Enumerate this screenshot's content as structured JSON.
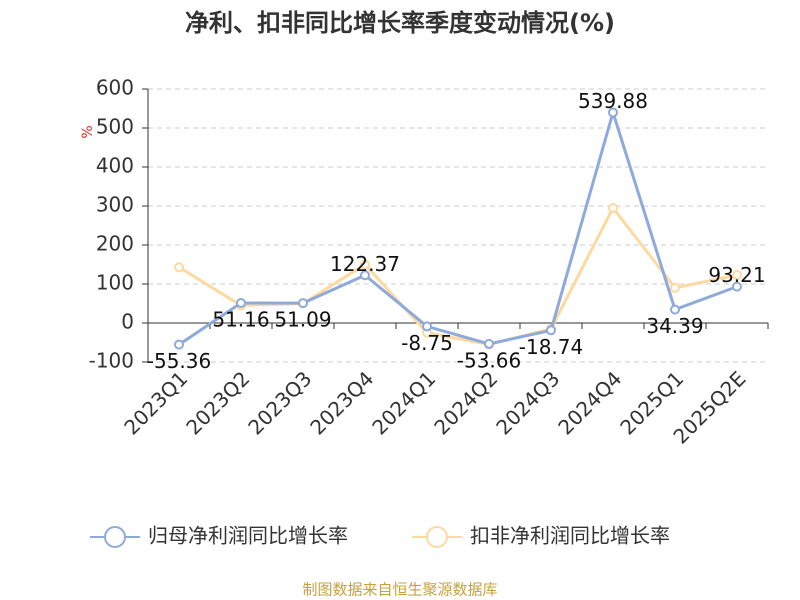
{
  "chart_data": {
    "type": "line",
    "title": "净利、扣非同比增长率季度变动情况(%)",
    "y_label": "%",
    "source": "制图数据来自恒生聚源数据库",
    "categories": [
      "2023Q1",
      "2023Q2",
      "2023Q3",
      "2023Q4",
      "2024Q1",
      "2024Q2",
      "2024Q3",
      "2024Q4",
      "2025Q1",
      "2025Q2E"
    ],
    "series": [
      {
        "name": "归母净利润同比增长率",
        "color": "#8eaadb",
        "values": [
          -55.36,
          51.16,
          51.09,
          122.37,
          -8.75,
          -53.66,
          -18.74,
          539.88,
          34.39,
          93.21
        ],
        "show_labels": true
      },
      {
        "name": "扣非净利润同比增长率",
        "color": "#fdd9a0",
        "values": [
          143,
          45,
          50,
          150,
          -25,
          -55,
          -15,
          295,
          90,
          123
        ],
        "show_labels": false
      }
    ],
    "ylim": [
      -100,
      600
    ],
    "yticks": [
      -100,
      0,
      100,
      200,
      300,
      400,
      500,
      600
    ],
    "grid": true
  }
}
